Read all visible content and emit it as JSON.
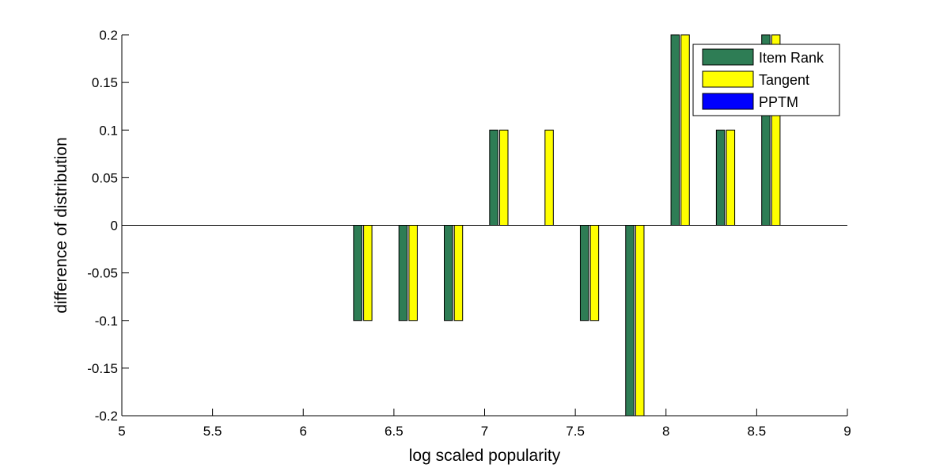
{
  "chart_data": {
    "type": "bar",
    "title": "",
    "xlabel": "log scaled popularity",
    "ylabel": "difference of distribution",
    "xlim": [
      5,
      9
    ],
    "ylim": [
      -0.2,
      0.2
    ],
    "xticks": [
      "5",
      "5.5",
      "6",
      "6.5",
      "7",
      "7.5",
      "8",
      "8.5",
      "9"
    ],
    "yticks": [
      "0.2",
      "0.15",
      "0.1",
      "0.05",
      "0",
      "-0.05",
      "-0.1",
      "-0.15",
      "-0.2"
    ],
    "x": [
      6.35,
      6.6,
      6.85,
      7.1,
      7.35,
      7.6,
      7.85,
      8.1,
      8.35,
      8.6
    ],
    "series": [
      {
        "name": "Item Rank",
        "color": "#2e7d55",
        "values": [
          -0.1,
          -0.1,
          -0.1,
          0.1,
          0,
          -0.1,
          -0.2,
          0.2,
          0.1,
          0.2
        ]
      },
      {
        "name": "Tangent",
        "color": "#ffff00",
        "values": [
          -0.1,
          -0.1,
          -0.1,
          0.1,
          0.1,
          -0.1,
          -0.2,
          0.2,
          0.1,
          0.2
        ]
      },
      {
        "name": "PPTM",
        "color": "#0000ff",
        "values": [
          0,
          0,
          0,
          0,
          0,
          0,
          0,
          0,
          0,
          0
        ]
      }
    ],
    "grid": false,
    "legend_position": "top-right",
    "zero_line": true
  }
}
